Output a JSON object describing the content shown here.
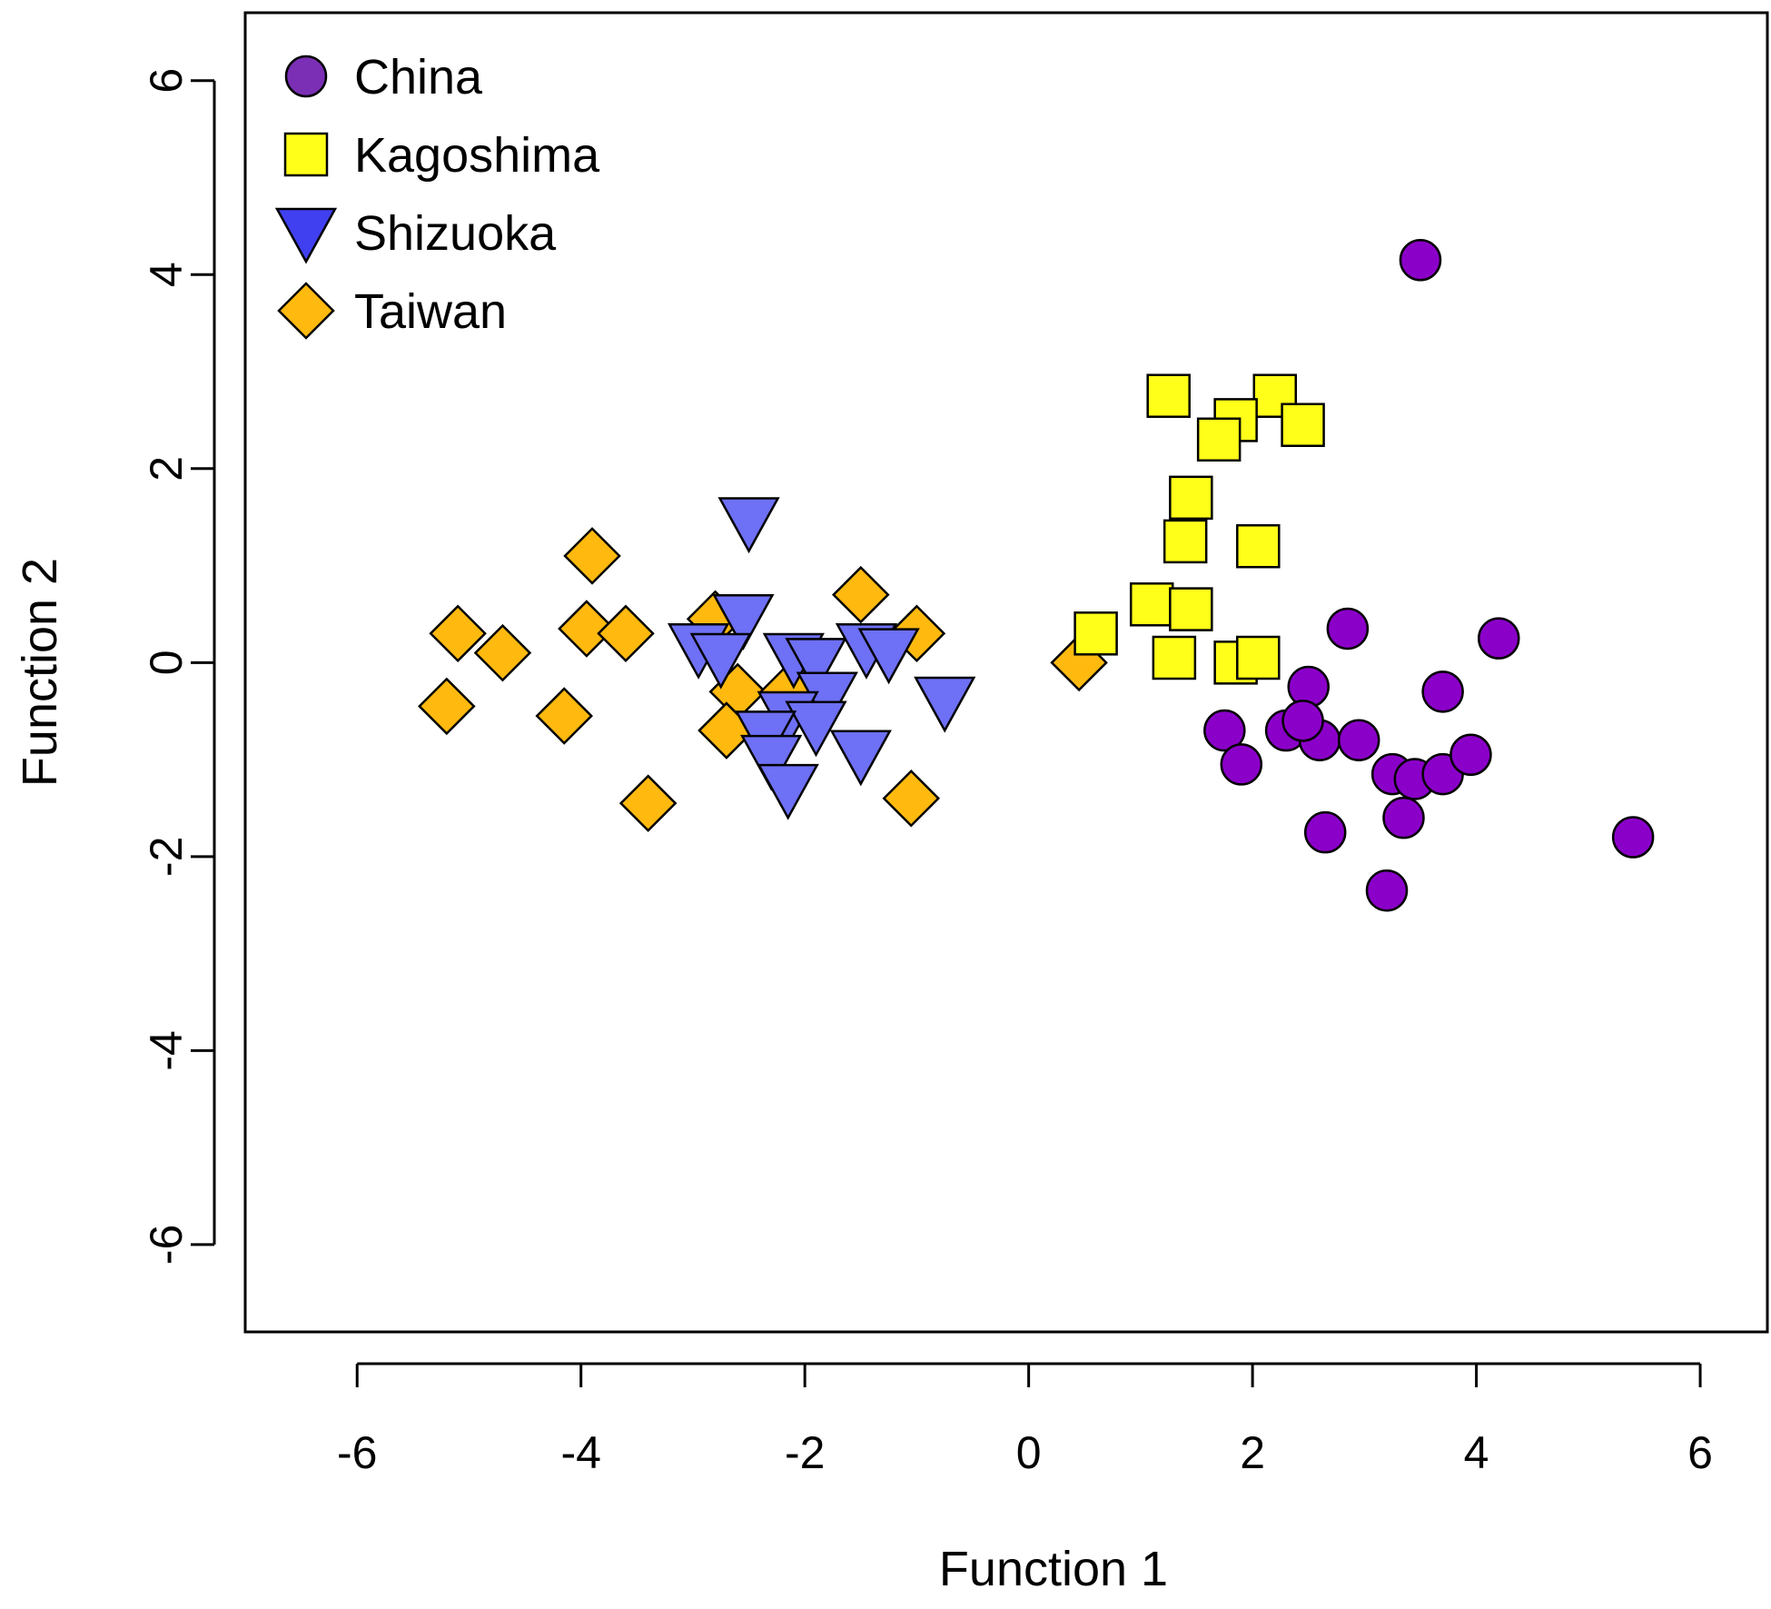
{
  "chart_data": {
    "type": "scatter",
    "title": "",
    "xlabel": "Function 1",
    "ylabel": "Function 2",
    "xlim": [
      -7.0,
      6.6
    ],
    "ylim": [
      -6.9,
      6.7
    ],
    "xticks": [
      -6,
      -4,
      -2,
      0,
      2,
      4,
      6
    ],
    "yticks": [
      -6,
      -4,
      -2,
      0,
      2,
      4,
      6
    ],
    "xtick_labels": [
      "-6",
      "-4",
      "-2",
      "0",
      "2",
      "4",
      "6"
    ],
    "ytick_labels": [
      "-6",
      "-4",
      "-2",
      "0",
      "2",
      "4",
      "6"
    ],
    "grid": false,
    "legend_position": "top-left",
    "series": [
      {
        "name": "China",
        "marker": "circle",
        "color": "#8B00C9",
        "legend_color": "#7B2FB5",
        "points": [
          [
            3.5,
            4.15
          ],
          [
            2.85,
            0.35
          ],
          [
            4.2,
            0.25
          ],
          [
            2.5,
            -0.25
          ],
          [
            3.7,
            -0.3
          ],
          [
            1.75,
            -0.7
          ],
          [
            2.3,
            -0.7
          ],
          [
            2.6,
            -0.8
          ],
          [
            2.95,
            -0.8
          ],
          [
            2.45,
            -0.6
          ],
          [
            1.9,
            -1.05
          ],
          [
            3.25,
            -1.15
          ],
          [
            3.45,
            -1.2
          ],
          [
            3.7,
            -1.15
          ],
          [
            3.95,
            -0.95
          ],
          [
            3.35,
            -1.6
          ],
          [
            2.65,
            -1.75
          ],
          [
            3.2,
            -2.35
          ],
          [
            5.4,
            -1.8
          ]
        ]
      },
      {
        "name": "Kagoshima",
        "marker": "square",
        "color": "#FFFF1A",
        "legend_color": "#FFFF1A",
        "points": [
          [
            1.25,
            2.75
          ],
          [
            2.2,
            2.75
          ],
          [
            1.85,
            2.5
          ],
          [
            2.45,
            2.45
          ],
          [
            1.7,
            2.3
          ],
          [
            1.45,
            1.7
          ],
          [
            1.4,
            1.25
          ],
          [
            2.05,
            1.2
          ],
          [
            1.1,
            0.6
          ],
          [
            1.45,
            0.55
          ],
          [
            0.6,
            0.3
          ],
          [
            1.3,
            0.05
          ],
          [
            1.85,
            0.0
          ],
          [
            2.05,
            0.05
          ]
        ]
      },
      {
        "name": "Shizuoka",
        "marker": "triangle-down",
        "color": "#6E70F5",
        "legend_color": "#4040F0",
        "points": [
          [
            -2.5,
            1.45
          ],
          [
            -2.55,
            0.45
          ],
          [
            -2.95,
            0.15
          ],
          [
            -2.75,
            0.05
          ],
          [
            -2.1,
            0.05
          ],
          [
            -1.9,
            0.0
          ],
          [
            -1.45,
            0.15
          ],
          [
            -1.25,
            0.1
          ],
          [
            -1.8,
            -0.35
          ],
          [
            -2.15,
            -0.55
          ],
          [
            -1.9,
            -0.65
          ],
          [
            -2.35,
            -0.75
          ],
          [
            -1.5,
            -0.95
          ],
          [
            -2.3,
            -1.0
          ],
          [
            -2.15,
            -1.3
          ],
          [
            -0.75,
            -0.4
          ]
        ]
      },
      {
        "name": "Taiwan",
        "marker": "diamond",
        "color": "#FFB90F",
        "legend_color": "#FFB90F",
        "points": [
          [
            -3.9,
            1.1
          ],
          [
            -5.1,
            0.3
          ],
          [
            -4.7,
            0.1
          ],
          [
            -3.95,
            0.35
          ],
          [
            -3.6,
            0.3
          ],
          [
            -2.8,
            0.45
          ],
          [
            -1.5,
            0.7
          ],
          [
            -1.0,
            0.3
          ],
          [
            -2.6,
            -0.3
          ],
          [
            -2.15,
            -0.3
          ],
          [
            -5.2,
            -0.45
          ],
          [
            -4.15,
            -0.55
          ],
          [
            -2.7,
            -0.7
          ],
          [
            -3.4,
            -1.45
          ],
          [
            -1.05,
            -1.4
          ],
          [
            0.45,
            0.0
          ]
        ]
      }
    ]
  }
}
